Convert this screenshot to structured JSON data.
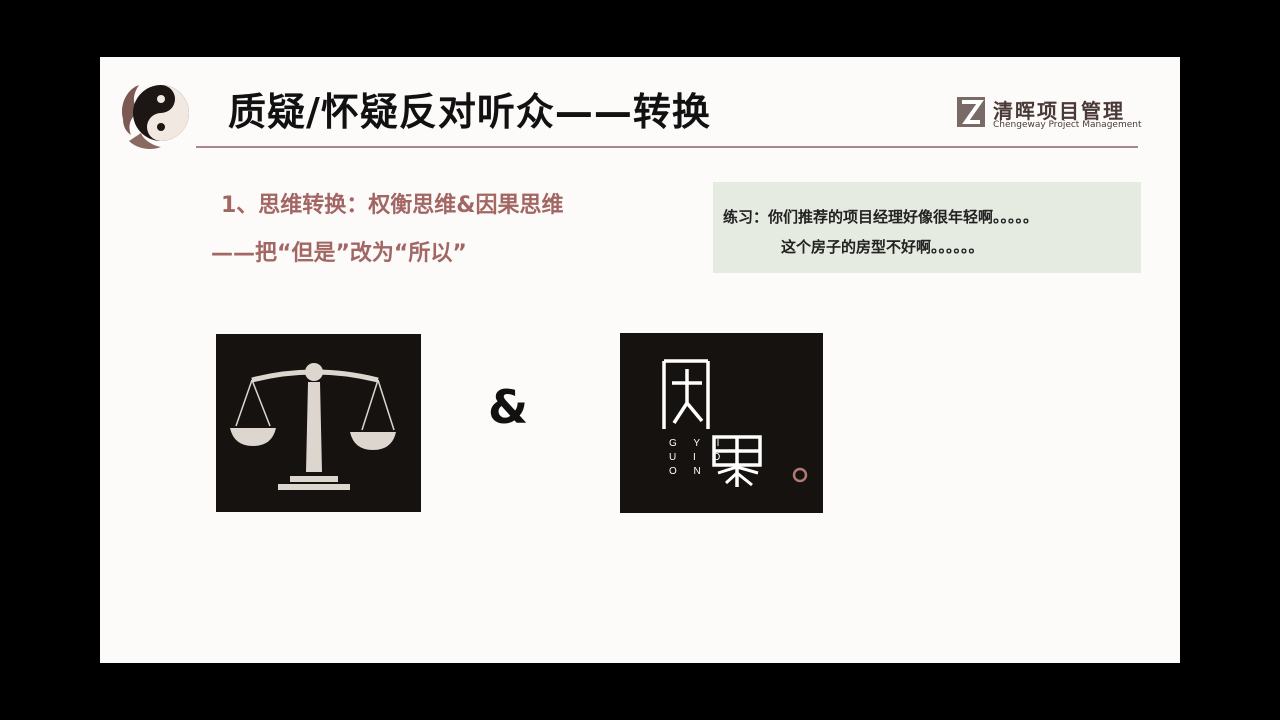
{
  "slide": {
    "title": "质疑/怀疑反对听众——转换",
    "brand": {
      "name": "清晖项目管理",
      "subtitle": "Chengeway Project Management"
    },
    "points": {
      "line1": "1、思维转换：权衡思维&因果思维",
      "line2": "——把“但是”改为“所以”"
    },
    "practice": {
      "line1": "练习：你们推荐的项目经理好像很年轻啊。。。。。",
      "line2": "这个房子的房型不好啊。。。。。。"
    },
    "symbols": {
      "ampersand": "&",
      "left_icon": "scale-icon",
      "right_icon": "yinguo-logo",
      "right_letters": [
        "G Y I",
        "U I O",
        "O N"
      ]
    },
    "colors": {
      "accent": "#a26663",
      "divider": "#a9878a",
      "practice_bg": "#e6ebe1",
      "image_bg": "#15120f"
    }
  }
}
